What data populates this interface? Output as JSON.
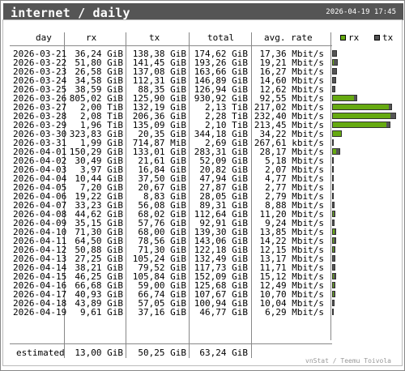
{
  "header": {
    "title": "internet / daily",
    "timestamp": "2026-04-19 17:45"
  },
  "columns": {
    "day": "day",
    "rx": "rx",
    "tx": "tx",
    "total": "total",
    "avg": "avg. rate"
  },
  "legend": {
    "rx": "rx",
    "tx": "tx"
  },
  "colors": {
    "rx": "#66aa11",
    "tx": "#555555"
  },
  "rows": [
    {
      "day": "2026-03-21",
      "rx": "36,24 GiB",
      "tx": "138,38 GiB",
      "total": "174,62 GiB",
      "avg": "17,36 Mbit/s"
    },
    {
      "day": "2026-03-22",
      "rx": "51,80 GiB",
      "tx": "141,45 GiB",
      "total": "193,26 GiB",
      "avg": "19,21 Mbit/s"
    },
    {
      "day": "2026-03-23",
      "rx": "26,58 GiB",
      "tx": "137,08 GiB",
      "total": "163,66 GiB",
      "avg": "16,27 Mbit/s"
    },
    {
      "day": "2026-03-24",
      "rx": "34,58 GiB",
      "tx": "112,31 GiB",
      "total": "146,89 GiB",
      "avg": "14,60 Mbit/s"
    },
    {
      "day": "2026-03-25",
      "rx": "38,59 GiB",
      "tx": "88,35 GiB",
      "total": "126,94 GiB",
      "avg": "12,62 Mbit/s"
    },
    {
      "day": "2026-03-26",
      "rx": "805,02 GiB",
      "tx": "125,90 GiB",
      "total": "930,92 GiB",
      "avg": "92,55 Mbit/s"
    },
    {
      "day": "2026-03-27",
      "rx": "2,00 TiB",
      "tx": "132,19 GiB",
      "total": "2,13 TiB",
      "avg": "217,02 Mbit/s"
    },
    {
      "day": "2026-03-28",
      "rx": "2,08 TiB",
      "tx": "206,36 GiB",
      "total": "2,28 TiB",
      "avg": "232,40 Mbit/s"
    },
    {
      "day": "2026-03-29",
      "rx": "1,96 TiB",
      "tx": "135,09 GiB",
      "total": "2,10 TiB",
      "avg": "213,45 Mbit/s"
    },
    {
      "day": "2026-03-30",
      "rx": "323,83 GiB",
      "tx": "20,35 GiB",
      "total": "344,18 GiB",
      "avg": "34,22 Mbit/s"
    },
    {
      "day": "2026-03-31",
      "rx": "1,99 GiB",
      "tx": "714,87 MiB",
      "total": "2,69 GiB",
      "avg": "267,61 kbit/s"
    },
    {
      "day": "2026-04-01",
      "rx": "150,29 GiB",
      "tx": "133,01 GiB",
      "total": "283,31 GiB",
      "avg": "28,17 Mbit/s"
    },
    {
      "day": "2026-04-02",
      "rx": "30,49 GiB",
      "tx": "21,61 GiB",
      "total": "52,09 GiB",
      "avg": "5,18 Mbit/s"
    },
    {
      "day": "2026-04-03",
      "rx": "3,97 GiB",
      "tx": "16,84 GiB",
      "total": "20,82 GiB",
      "avg": "2,07 Mbit/s"
    },
    {
      "day": "2026-04-04",
      "rx": "10,44 GiB",
      "tx": "37,50 GiB",
      "total": "47,94 GiB",
      "avg": "4,77 Mbit/s"
    },
    {
      "day": "2026-04-05",
      "rx": "7,20 GiB",
      "tx": "20,67 GiB",
      "total": "27,87 GiB",
      "avg": "2,77 Mbit/s"
    },
    {
      "day": "2026-04-06",
      "rx": "19,22 GiB",
      "tx": "8,83 GiB",
      "total": "28,05 GiB",
      "avg": "2,79 Mbit/s"
    },
    {
      "day": "2026-04-07",
      "rx": "33,23 GiB",
      "tx": "56,08 GiB",
      "total": "89,31 GiB",
      "avg": "8,88 Mbit/s"
    },
    {
      "day": "2026-04-08",
      "rx": "44,62 GiB",
      "tx": "68,02 GiB",
      "total": "112,64 GiB",
      "avg": "11,20 Mbit/s"
    },
    {
      "day": "2026-04-09",
      "rx": "35,15 GiB",
      "tx": "57,76 GiB",
      "total": "92,91 GiB",
      "avg": "9,24 Mbit/s"
    },
    {
      "day": "2026-04-10",
      "rx": "71,30 GiB",
      "tx": "68,00 GiB",
      "total": "139,30 GiB",
      "avg": "13,85 Mbit/s"
    },
    {
      "day": "2026-04-11",
      "rx": "64,50 GiB",
      "tx": "78,56 GiB",
      "total": "143,06 GiB",
      "avg": "14,22 Mbit/s"
    },
    {
      "day": "2026-04-12",
      "rx": "50,88 GiB",
      "tx": "71,30 GiB",
      "total": "122,18 GiB",
      "avg": "12,15 Mbit/s"
    },
    {
      "day": "2026-04-13",
      "rx": "27,25 GiB",
      "tx": "105,24 GiB",
      "total": "132,49 GiB",
      "avg": "13,17 Mbit/s"
    },
    {
      "day": "2026-04-14",
      "rx": "38,21 GiB",
      "tx": "79,52 GiB",
      "total": "117,73 GiB",
      "avg": "11,71 Mbit/s"
    },
    {
      "day": "2026-04-15",
      "rx": "46,25 GiB",
      "tx": "105,84 GiB",
      "total": "152,09 GiB",
      "avg": "15,12 Mbit/s"
    },
    {
      "day": "2026-04-16",
      "rx": "66,68 GiB",
      "tx": "59,00 GiB",
      "total": "125,68 GiB",
      "avg": "12,49 Mbit/s"
    },
    {
      "day": "2026-04-17",
      "rx": "40,93 GiB",
      "tx": "66,74 GiB",
      "total": "107,67 GiB",
      "avg": "10,70 Mbit/s"
    },
    {
      "day": "2026-04-18",
      "rx": "43,89 GiB",
      "tx": "57,05 GiB",
      "total": "100,94 GiB",
      "avg": "10,04 Mbit/s"
    },
    {
      "day": "2026-04-19",
      "rx": "9,61 GiB",
      "tx": "37,16 GiB",
      "total": "46,77 GiB",
      "avg": "6,29 Mbit/s"
    }
  ],
  "estimated": {
    "label": "estimated",
    "rx": "13,00 GiB",
    "tx": "50,25 GiB",
    "total": "63,24 GiB"
  },
  "footer": "vnStat / Teemu Toivola",
  "chart_data": {
    "type": "bar",
    "stacked": true,
    "orientation": "horizontal",
    "categories": [
      "2026-03-21",
      "2026-03-22",
      "2026-03-23",
      "2026-03-24",
      "2026-03-25",
      "2026-03-26",
      "2026-03-27",
      "2026-03-28",
      "2026-03-29",
      "2026-03-30",
      "2026-03-31",
      "2026-04-01",
      "2026-04-02",
      "2026-04-03",
      "2026-04-04",
      "2026-04-05",
      "2026-04-06",
      "2026-04-07",
      "2026-04-08",
      "2026-04-09",
      "2026-04-10",
      "2026-04-11",
      "2026-04-12",
      "2026-04-13",
      "2026-04-14",
      "2026-04-15",
      "2026-04-16",
      "2026-04-17",
      "2026-04-18",
      "2026-04-19"
    ],
    "series": [
      {
        "name": "rx",
        "values": [
          36.24,
          51.8,
          26.58,
          34.58,
          38.59,
          805.02,
          2048.0,
          2129.92,
          2007.04,
          323.83,
          1.99,
          150.29,
          30.49,
          3.97,
          10.44,
          7.2,
          19.22,
          33.23,
          44.62,
          35.15,
          71.3,
          64.5,
          50.88,
          27.25,
          38.21,
          46.25,
          66.68,
          40.93,
          43.89,
          9.61
        ]
      },
      {
        "name": "tx",
        "values": [
          138.38,
          141.45,
          137.08,
          112.31,
          88.35,
          125.9,
          132.19,
          206.36,
          135.09,
          20.35,
          0.7,
          133.01,
          21.61,
          16.84,
          37.5,
          20.67,
          8.83,
          56.08,
          68.02,
          57.76,
          68.0,
          78.56,
          71.3,
          105.24,
          79.52,
          105.84,
          59.0,
          66.74,
          57.05,
          37.16
        ]
      }
    ],
    "unit": "GiB",
    "legend": "top-right"
  }
}
